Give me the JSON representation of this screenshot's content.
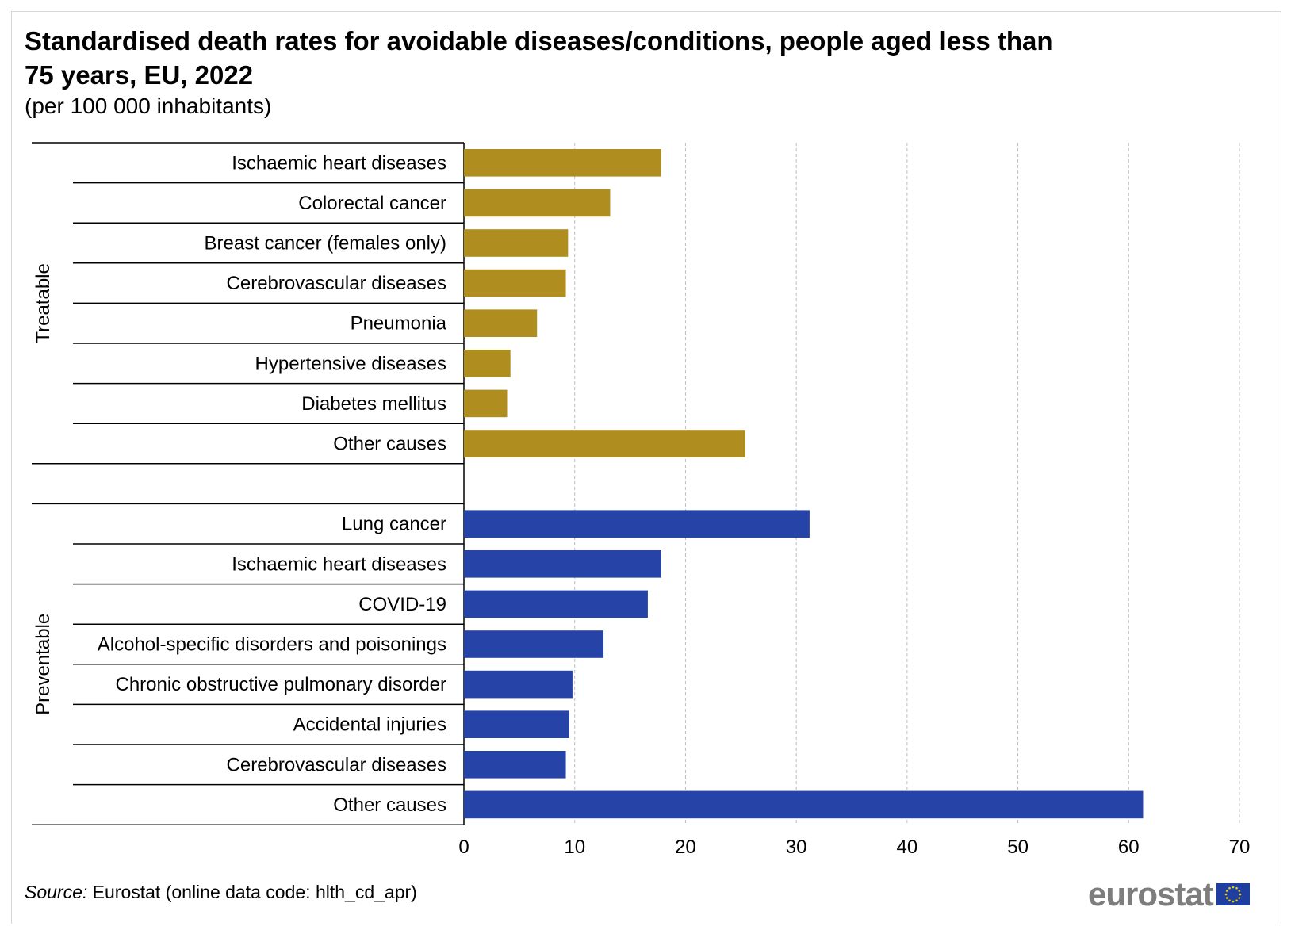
{
  "title": "Standardised death rates for avoidable diseases/conditions, people aged less than 75 years, EU, 2022",
  "subtitle": "(per 100 000 inhabitants)",
  "source_label": "Source:",
  "source_text": " Eurostat (online data code: hlth_cd_apr)",
  "logo": "eurostat",
  "chart_data": {
    "type": "bar",
    "orientation": "horizontal",
    "title": "Standardised death rates for avoidable diseases/conditions, people aged less than 75 years, EU, 2022",
    "xlabel": "",
    "ylabel": "",
    "xlim": [
      0,
      70
    ],
    "xticks": [
      0,
      10,
      20,
      30,
      40,
      50,
      60,
      70
    ],
    "grid": true,
    "groups": [
      {
        "name": "Treatable",
        "color": "#b08d1f",
        "categories": [
          "Ischaemic heart diseases",
          "Colorectal cancer",
          "Breast cancer (females only)",
          "Cerebrovascular diseases",
          "Pneumonia",
          "Hypertensive diseases",
          "Diabetes mellitus",
          "Other causes"
        ],
        "values": [
          17.8,
          13.2,
          9.4,
          9.2,
          6.6,
          4.2,
          3.9,
          25.4
        ]
      },
      {
        "name": "Preventable",
        "color": "#2644a8",
        "categories": [
          "Lung cancer",
          "Ischaemic heart diseases",
          "COVID-19",
          "Alcohol-specific disorders and poisonings",
          "Chronic obstructive pulmonary disorder",
          "Accidental injuries",
          "Cerebrovascular diseases",
          "Other causes"
        ],
        "values": [
          31.2,
          17.8,
          16.6,
          12.6,
          9.8,
          9.5,
          9.2,
          61.3
        ]
      }
    ]
  }
}
